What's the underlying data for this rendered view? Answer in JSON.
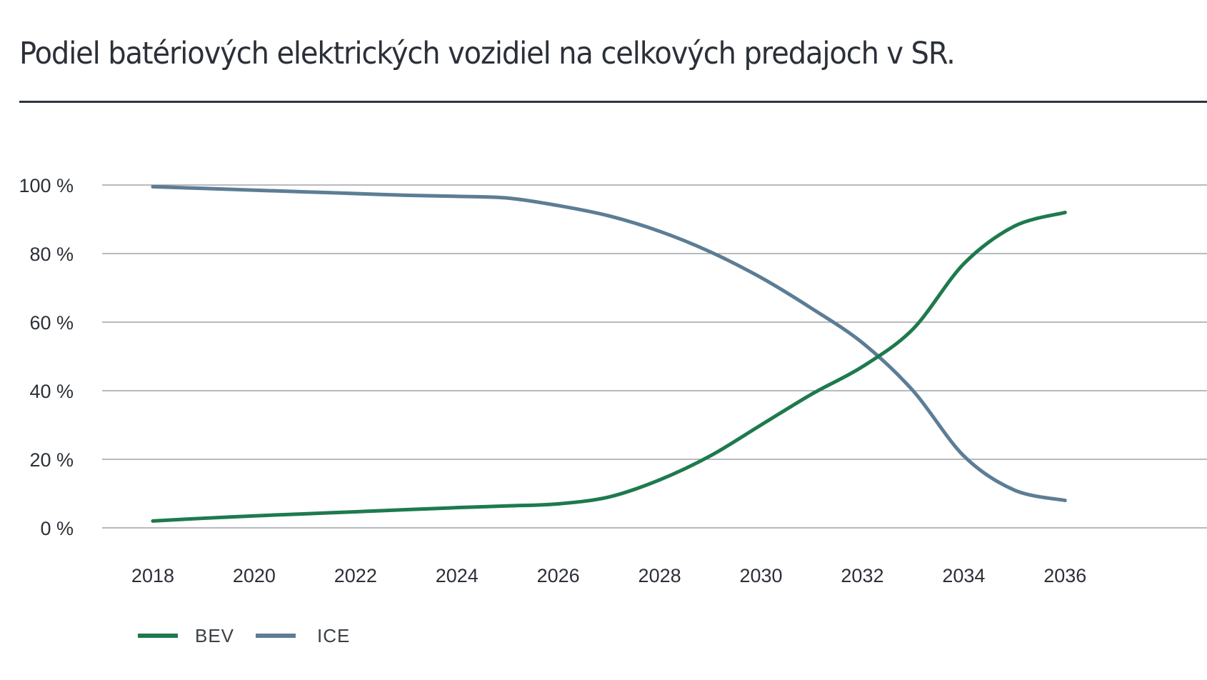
{
  "chart_data": {
    "type": "line",
    "title": "Podiel batériových elektrických vozidiel na celkových predajoch v SR.",
    "xlabel": "",
    "ylabel": "",
    "x": [
      2018,
      2019,
      2020,
      2021,
      2022,
      2023,
      2024,
      2025,
      2026,
      2027,
      2028,
      2029,
      2030,
      2031,
      2032,
      2033,
      2034,
      2035,
      2036
    ],
    "x_tick_labels": [
      "2018",
      "2020",
      "2022",
      "2024",
      "2026",
      "2028",
      "2030",
      "2032",
      "2034",
      "2036"
    ],
    "y_tick_labels": [
      "0 %",
      "20 %",
      "40 %",
      "60 %",
      "80 %",
      "100 %"
    ],
    "y_ticks": [
      0,
      20,
      40,
      60,
      80,
      100
    ],
    "xlim": [
      2017,
      2038.8
    ],
    "ylim": [
      0,
      100
    ],
    "grid": "horizontal",
    "legend_position": "bottom-left",
    "series": [
      {
        "name": "BEV",
        "color": "#1e7a4e",
        "values": [
          2,
          2.8,
          3.5,
          4.1,
          4.7,
          5.3,
          5.9,
          6.4,
          7,
          9,
          14,
          21,
          30,
          39,
          47,
          58,
          77,
          88,
          92
        ]
      },
      {
        "name": "ICE",
        "color": "#5c7d95",
        "values": [
          99.5,
          99,
          98.5,
          98,
          97.5,
          97,
          96.7,
          96.2,
          94,
          91,
          86.5,
          80.5,
          73,
          64,
          54,
          40,
          21,
          11,
          8
        ]
      }
    ]
  }
}
